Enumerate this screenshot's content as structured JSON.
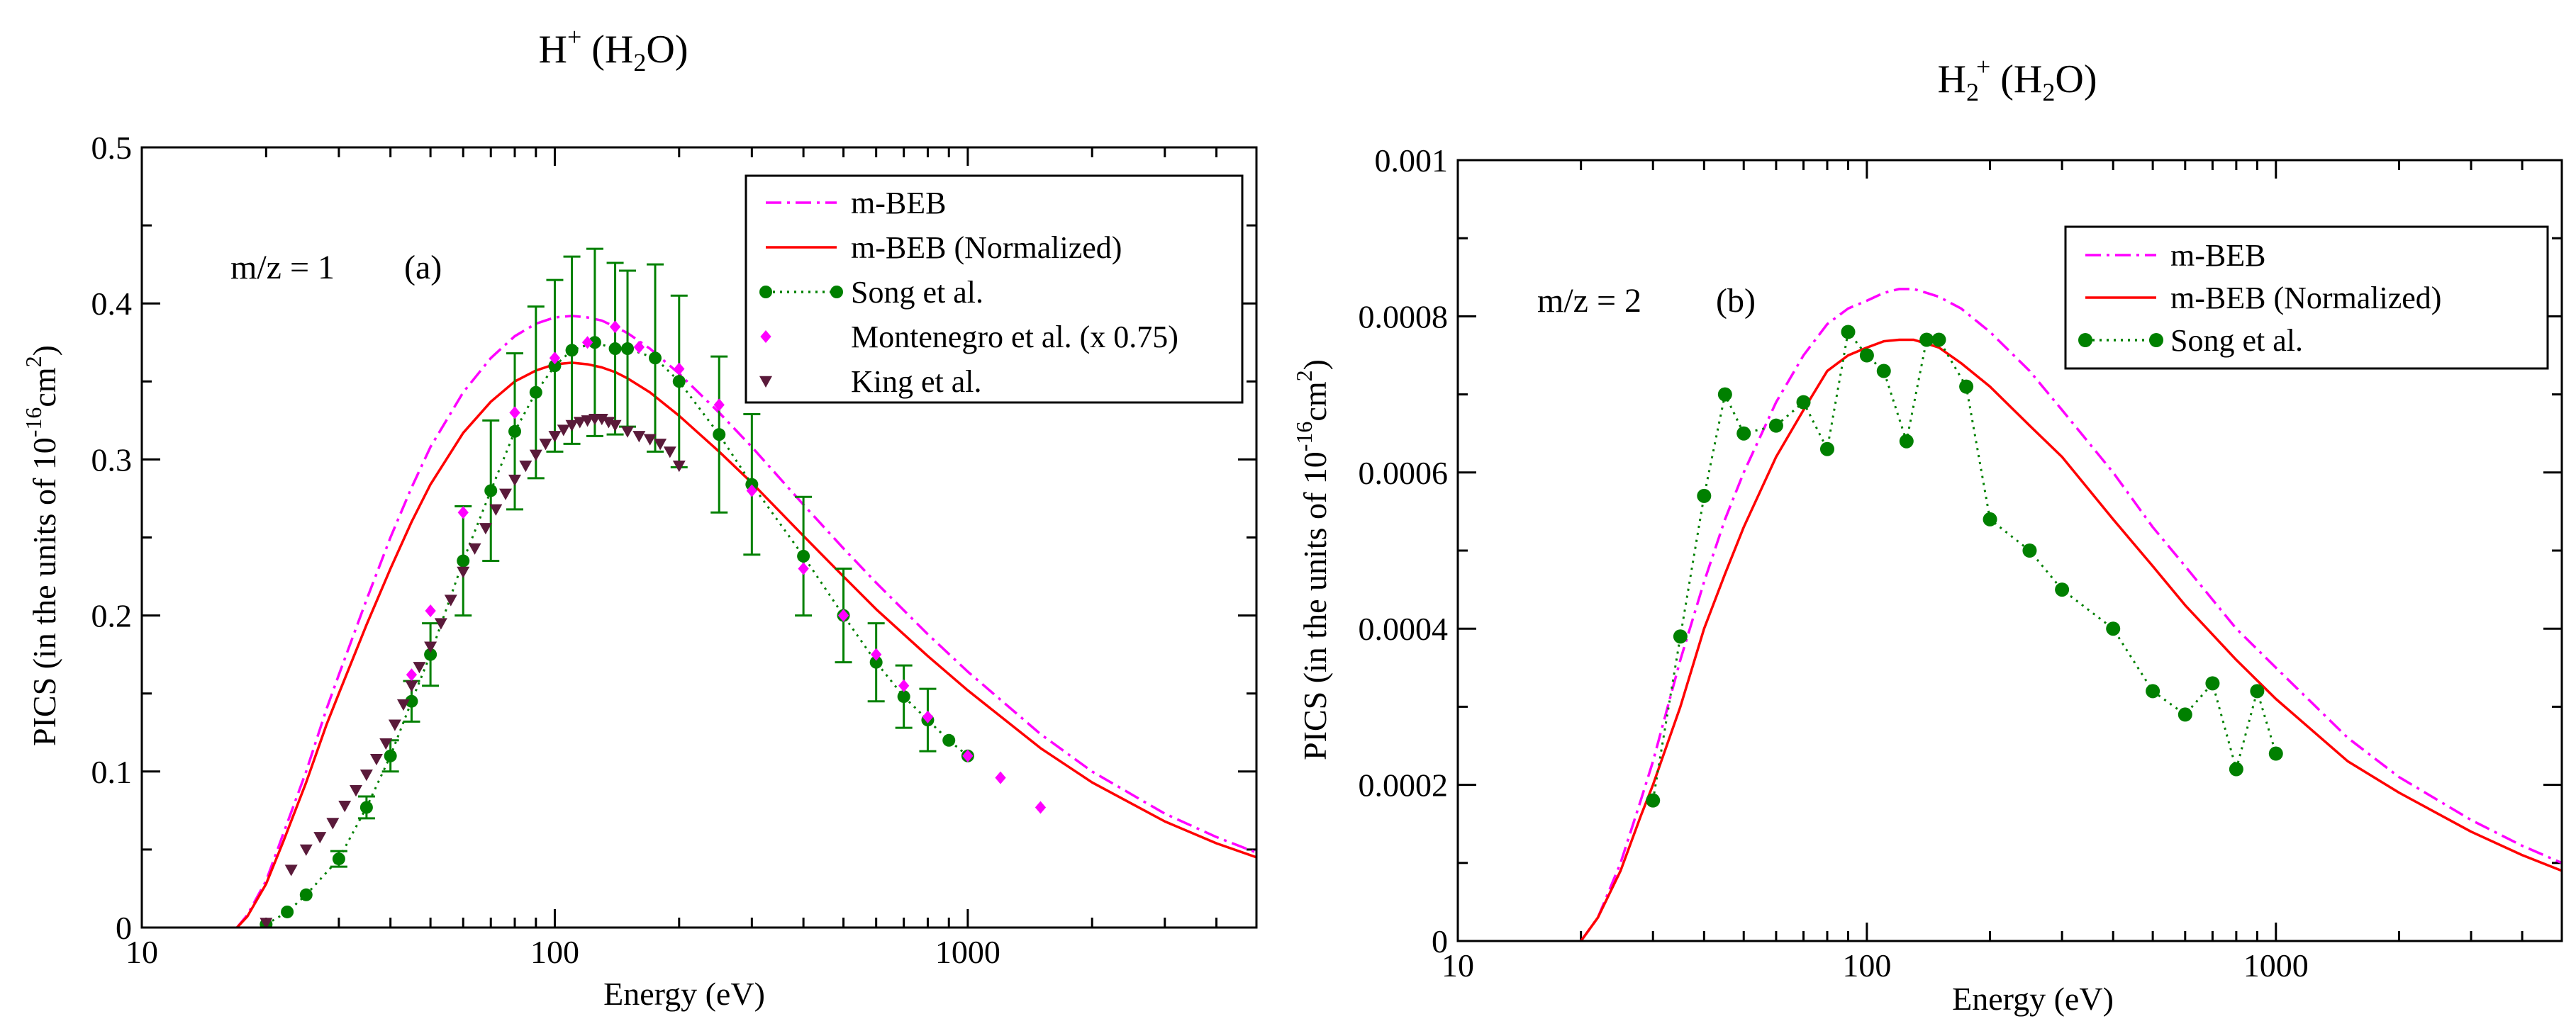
{
  "chart_data": [
    {
      "panel": "a",
      "type": "line",
      "title": "H⁺ (H₂O)",
      "title_main": "H",
      "title_sup": "+",
      "title_paren_open": "(H",
      "title_sub": "2",
      "title_paren_close": "O)",
      "xlabel": "Energy (eV)",
      "ylabel": "PICS (in the units of 10⁻¹⁶cm²)",
      "ylabel_main": "PICS (in the units of 10",
      "ylabel_sup": "-16",
      "ylabel_unit": "cm",
      "ylabel_sup2": "2",
      "ylabel_close": ")",
      "xscale": "log",
      "xlim": [
        10,
        5000
      ],
      "ylim": [
        0,
        0.5
      ],
      "x_ticks": [
        10,
        100,
        1000
      ],
      "x_tick_labels": [
        "10",
        "100",
        "1000"
      ],
      "y_ticks": [
        0,
        0.1,
        0.2,
        0.3,
        0.4,
        0.5
      ],
      "y_tick_labels": [
        "0",
        "0.1",
        "0.2",
        "0.3",
        "0.4",
        "0.5"
      ],
      "annotation_mz": "m/z = 1",
      "annotation_label": "(a)",
      "legend_position": "top-right",
      "series": [
        {
          "name": "m-BEB",
          "style": "dash-dot",
          "color": "#ff00ff",
          "x": [
            17,
            18,
            20,
            22,
            25,
            28,
            30,
            35,
            40,
            45,
            50,
            60,
            70,
            80,
            90,
            100,
            110,
            120,
            130,
            140,
            150,
            170,
            200,
            250,
            300,
            400,
            500,
            600,
            800,
            1000,
            1500,
            2000,
            3000,
            4000,
            5000
          ],
          "y": [
            0.0,
            0.008,
            0.03,
            0.06,
            0.1,
            0.14,
            0.162,
            0.21,
            0.25,
            0.282,
            0.308,
            0.343,
            0.365,
            0.379,
            0.387,
            0.391,
            0.392,
            0.391,
            0.389,
            0.385,
            0.381,
            0.371,
            0.355,
            0.33,
            0.308,
            0.271,
            0.243,
            0.221,
            0.188,
            0.164,
            0.124,
            0.1,
            0.073,
            0.058,
            0.048
          ]
        },
        {
          "name": "m-BEB (Normalized)",
          "style": "solid",
          "color": "#ff0000",
          "x": [
            17,
            18,
            20,
            22,
            25,
            28,
            30,
            35,
            40,
            45,
            50,
            60,
            70,
            80,
            90,
            100,
            110,
            120,
            130,
            140,
            150,
            170,
            200,
            250,
            300,
            400,
            500,
            600,
            800,
            1000,
            1500,
            2000,
            3000,
            4000,
            5000
          ],
          "y": [
            0.0,
            0.007,
            0.028,
            0.055,
            0.093,
            0.13,
            0.15,
            0.194,
            0.23,
            0.26,
            0.284,
            0.317,
            0.337,
            0.35,
            0.357,
            0.361,
            0.362,
            0.361,
            0.359,
            0.356,
            0.352,
            0.343,
            0.328,
            0.305,
            0.285,
            0.251,
            0.225,
            0.204,
            0.174,
            0.152,
            0.115,
            0.093,
            0.068,
            0.054,
            0.045
          ]
        },
        {
          "name": "Song et al.",
          "style": "dotted-markers",
          "color": "#008000",
          "x": [
            20,
            22.5,
            25,
            30,
            35,
            40,
            45,
            50,
            60,
            70,
            80,
            90,
            100,
            110,
            125,
            140,
            150,
            175,
            200,
            250,
            300,
            400,
            500,
            600,
            700,
            800,
            900,
            1000
          ],
          "y": [
            0.002,
            0.01,
            0.021,
            0.044,
            0.077,
            0.11,
            0.145,
            0.175,
            0.235,
            0.28,
            0.318,
            0.343,
            0.36,
            0.37,
            0.375,
            0.371,
            0.371,
            0.365,
            0.35,
            0.316,
            0.284,
            0.238,
            0.2,
            0.17,
            0.148,
            0.133,
            0.12,
            0.11
          ],
          "error": [
            0,
            0,
            0,
            0.005,
            0.007,
            0.01,
            0.013,
            0.02,
            0.035,
            0.045,
            0.05,
            0.055,
            0.055,
            0.06,
            0.06,
            0.055,
            0.05,
            0.06,
            0.055,
            0.05,
            0.045,
            0.038,
            0.03,
            0.025,
            0.02,
            0.02,
            0,
            0
          ]
        },
        {
          "name": "Montenegro et al. (x 0.75)",
          "style": "diamond-markers",
          "color": "#ff00ff",
          "x": [
            45,
            50,
            60,
            80,
            100,
            120,
            140,
            160,
            200,
            250,
            300,
            400,
            500,
            600,
            700,
            800,
            1000,
            1200,
            1500
          ],
          "y": [
            0.162,
            0.203,
            0.266,
            0.33,
            0.365,
            0.375,
            0.385,
            0.372,
            0.358,
            0.335,
            0.28,
            0.23,
            0.2,
            0.175,
            0.155,
            0.135,
            0.11,
            0.096,
            0.077
          ]
        },
        {
          "name": "King et al.",
          "style": "triangle-down-markers",
          "color": "#5a1a3a",
          "x": [
            20,
            23,
            25,
            27,
            29,
            31,
            33,
            35,
            37,
            39,
            41,
            43,
            45,
            47,
            50,
            53,
            56,
            60,
            64,
            68,
            72,
            76,
            80,
            85,
            90,
            95,
            100,
            105,
            110,
            115,
            120,
            125,
            130,
            135,
            140,
            150,
            160,
            170,
            180,
            190,
            200
          ],
          "y": [
            0.003,
            0.037,
            0.05,
            0.058,
            0.067,
            0.078,
            0.088,
            0.098,
            0.108,
            0.118,
            0.13,
            0.143,
            0.155,
            0.167,
            0.18,
            0.195,
            0.21,
            0.228,
            0.243,
            0.256,
            0.268,
            0.278,
            0.287,
            0.296,
            0.303,
            0.31,
            0.315,
            0.319,
            0.322,
            0.324,
            0.325,
            0.326,
            0.326,
            0.324,
            0.322,
            0.318,
            0.315,
            0.313,
            0.31,
            0.305,
            0.296
          ]
        }
      ]
    },
    {
      "panel": "b",
      "type": "line",
      "title": "H₂⁺ (H₂O)",
      "title_main": "H",
      "title_sub1": "2",
      "title_sup": "+",
      "title_paren_open": "(H",
      "title_sub": "2",
      "title_paren_close": "O)",
      "xlabel": "Energy (eV)",
      "ylabel": "PICS (in the units of 10⁻¹⁶cm²)",
      "ylabel_main": "PICS (in the units of 10",
      "ylabel_sup": "-16",
      "ylabel_unit": "cm",
      "ylabel_sup2": "2",
      "ylabel_close": ")",
      "xscale": "log",
      "xlim": [
        10,
        5000
      ],
      "ylim": [
        0,
        0.001
      ],
      "x_ticks": [
        10,
        100,
        1000
      ],
      "x_tick_labels": [
        "10",
        "100",
        "1000"
      ],
      "y_ticks": [
        0,
        0.0002,
        0.0004,
        0.0006,
        0.0008,
        0.001
      ],
      "y_tick_labels": [
        "0",
        "0.0002",
        "0.0004",
        "0.0006",
        "0.0008",
        "0.001"
      ],
      "annotation_mz": "m/z = 2",
      "annotation_label": "(b)",
      "legend_position": "top-right",
      "series": [
        {
          "name": "m-BEB",
          "style": "dash-dot",
          "color": "#ff00ff",
          "x": [
            20,
            22,
            25,
            28,
            30,
            35,
            40,
            45,
            50,
            60,
            70,
            80,
            90,
            100,
            110,
            120,
            130,
            140,
            150,
            170,
            200,
            250,
            300,
            400,
            500,
            600,
            800,
            1000,
            1500,
            2000,
            3000,
            4000,
            5000
          ],
          "y": [
            0.0,
            3e-05,
            0.0001,
            0.00018,
            0.00023,
            0.00036,
            0.00046,
            0.00054,
            0.0006,
            0.00069,
            0.00075,
            0.00079,
            0.00081,
            0.00082,
            0.00083,
            0.000835,
            0.000835,
            0.00083,
            0.000825,
            0.00081,
            0.00078,
            0.00073,
            0.00068,
            0.0006,
            0.00053,
            0.00048,
            0.0004,
            0.00035,
            0.00026,
            0.00021,
            0.000155,
            0.000122,
            0.0001
          ]
        },
        {
          "name": "m-BEB (Normalized)",
          "style": "solid",
          "color": "#ff0000",
          "x": [
            20,
            22,
            25,
            28,
            30,
            35,
            40,
            45,
            50,
            60,
            70,
            80,
            90,
            100,
            110,
            120,
            130,
            140,
            150,
            170,
            200,
            250,
            300,
            400,
            500,
            600,
            800,
            1000,
            1500,
            2000,
            3000,
            4000,
            5000
          ],
          "y": [
            0.0,
            3e-05,
            9e-05,
            0.00016,
            0.0002,
            0.0003,
            0.0004,
            0.00047,
            0.00053,
            0.00062,
            0.00068,
            0.00073,
            0.00075,
            0.00076,
            0.000768,
            0.00077,
            0.00077,
            0.000765,
            0.00076,
            0.00074,
            0.00071,
            0.00066,
            0.00062,
            0.00054,
            0.00048,
            0.00043,
            0.00036,
            0.00031,
            0.00023,
            0.00019,
            0.00014,
            0.00011,
            9e-05
          ]
        },
        {
          "name": "Song et al.",
          "style": "dotted-markers",
          "color": "#008000",
          "x": [
            30,
            35,
            40,
            45,
            50,
            60,
            70,
            80,
            90,
            100,
            110,
            125,
            140,
            150,
            175,
            200,
            250,
            300,
            400,
            500,
            600,
            700,
            800,
            900,
            1000
          ],
          "y": [
            0.00018,
            0.00039,
            0.00057,
            0.0007,
            0.00065,
            0.00066,
            0.00069,
            0.00063,
            0.00078,
            0.00075,
            0.00073,
            0.00064,
            0.00077,
            0.00077,
            0.00071,
            0.00054,
            0.0005,
            0.00045,
            0.0004,
            0.00032,
            0.00029,
            0.00033,
            0.00022,
            0.00032,
            0.00024
          ]
        }
      ]
    }
  ]
}
